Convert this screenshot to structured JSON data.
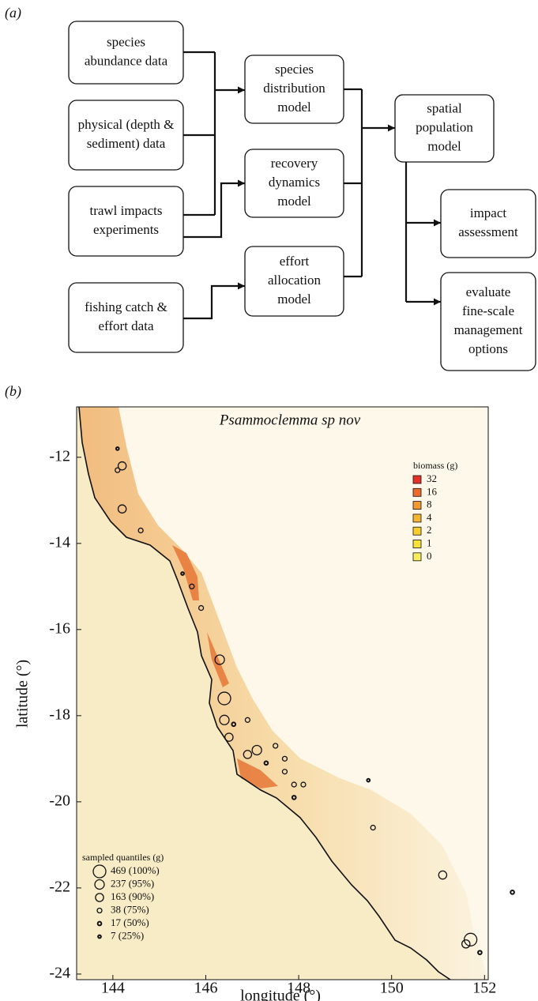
{
  "diagram": {
    "label": "(a)",
    "nodes": [
      {
        "lines": [
          "species",
          "abundance data"
        ]
      },
      {
        "lines": [
          "physical (depth &",
          "sediment) data"
        ]
      },
      {
        "lines": [
          "trawl impacts",
          "experiments"
        ]
      },
      {
        "lines": [
          "fishing catch &",
          "effort data"
        ]
      },
      {
        "lines": [
          "species",
          "distribution",
          "model"
        ]
      },
      {
        "lines": [
          "recovery",
          "dynamics",
          "model"
        ]
      },
      {
        "lines": [
          "effort",
          "allocation",
          "model"
        ]
      },
      {
        "lines": [
          "spatial",
          "population",
          "model"
        ]
      },
      {
        "lines": [
          "impact",
          "assessment"
        ]
      },
      {
        "lines": [
          "evaluate",
          "fine-scale",
          "management",
          "options"
        ]
      }
    ]
  },
  "chart_data": {
    "type": "scatter",
    "panel_label": "(b)",
    "title": "Psammoclemma sp nov",
    "x_label": "longitude (°)",
    "y_label": "latitude (°)",
    "xlim": [
      143.22,
      152.08
    ],
    "ylim": [
      -24.13,
      -10.83
    ],
    "xticks": [
      144,
      146,
      148,
      150,
      152
    ],
    "yticks": [
      -12,
      -14,
      -16,
      -18,
      -20,
      -22,
      -24
    ],
    "x": [
      144.1,
      144.2,
      144.1,
      144.2,
      144.6,
      145.5,
      145.7,
      145.9,
      146.3,
      146.4,
      146.4,
      146.5,
      146.9,
      147.1,
      146.9,
      147.5,
      147.7,
      147.7,
      148.1,
      147.9,
      149.5,
      149.6,
      151.1,
      152.6,
      151.7,
      151.6,
      151.9,
      146.6,
      147.3,
      147.9
    ],
    "y": [
      -11.8,
      -12.2,
      -12.3,
      -13.2,
      -13.7,
      -14.7,
      -15.0,
      -15.5,
      -16.7,
      -17.6,
      -18.1,
      -18.5,
      -18.1,
      -18.8,
      -18.9,
      -18.7,
      -19.0,
      -19.3,
      -19.6,
      -19.6,
      -19.5,
      -20.6,
      -21.7,
      -22.1,
      -23.2,
      -23.3,
      -23.5,
      -18.2,
      -19.1,
      -19.9
    ],
    "values": [
      7,
      163,
      38,
      163,
      38,
      7,
      38,
      38,
      237,
      469,
      237,
      163,
      38,
      237,
      163,
      38,
      38,
      38,
      38,
      38,
      7,
      38,
      163,
      17,
      469,
      163,
      17,
      17,
      17,
      17
    ],
    "biomass_legend": {
      "title": "biomass (g)",
      "levels": [
        32,
        16,
        8,
        4,
        2,
        1,
        0
      ],
      "colors": [
        "#e4312a",
        "#ec6a2c",
        "#f29a32",
        "#f6b635",
        "#f8cd2f",
        "#f7e23a",
        "#f6ec5c"
      ]
    },
    "size_legend": {
      "title": "sampled quantiles (g)",
      "entries": [
        {
          "value": 469,
          "label": "469 (100%)"
        },
        {
          "value": 237,
          "label": "237 (95%)"
        },
        {
          "value": 163,
          "label": "163 (90%)"
        },
        {
          "value": 38,
          "label": "38 (75%)"
        },
        {
          "value": 17,
          "label": "17 (50%)"
        },
        {
          "value": 7,
          "label": "7 (25%)"
        }
      ]
    }
  }
}
